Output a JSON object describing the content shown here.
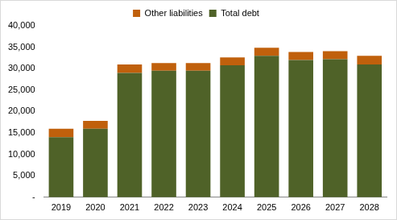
{
  "chart_data": {
    "type": "bar",
    "stacked": true,
    "grid": false,
    "legend": "top",
    "categories": [
      "2019",
      "2020",
      "2021",
      "2022",
      "2023",
      "2024",
      "2025",
      "2026",
      "2027",
      "2028"
    ],
    "series": [
      {
        "name": "Total debt",
        "color": "#4f6228",
        "values": [
          14000,
          16000,
          29000,
          29500,
          29500,
          30800,
          33000,
          32000,
          32200,
          31000
        ]
      },
      {
        "name": "Other liabilities",
        "color": "#c0600c",
        "values": [
          2000,
          1800,
          2000,
          1800,
          1800,
          1800,
          1900,
          1900,
          1900,
          2000
        ]
      }
    ],
    "ylim": [
      0,
      40000
    ],
    "yticks": [
      {
        "value": 0,
        "label": "-"
      },
      {
        "value": 5000,
        "label": "5,000"
      },
      {
        "value": 10000,
        "label": "10,000"
      },
      {
        "value": 15000,
        "label": "15,000"
      },
      {
        "value": 20000,
        "label": "20,000"
      },
      {
        "value": 25000,
        "label": "25,000"
      },
      {
        "value": 30000,
        "label": "30,000"
      },
      {
        "value": 35000,
        "label": "35,000"
      },
      {
        "value": 40000,
        "label": "40,000"
      }
    ]
  }
}
